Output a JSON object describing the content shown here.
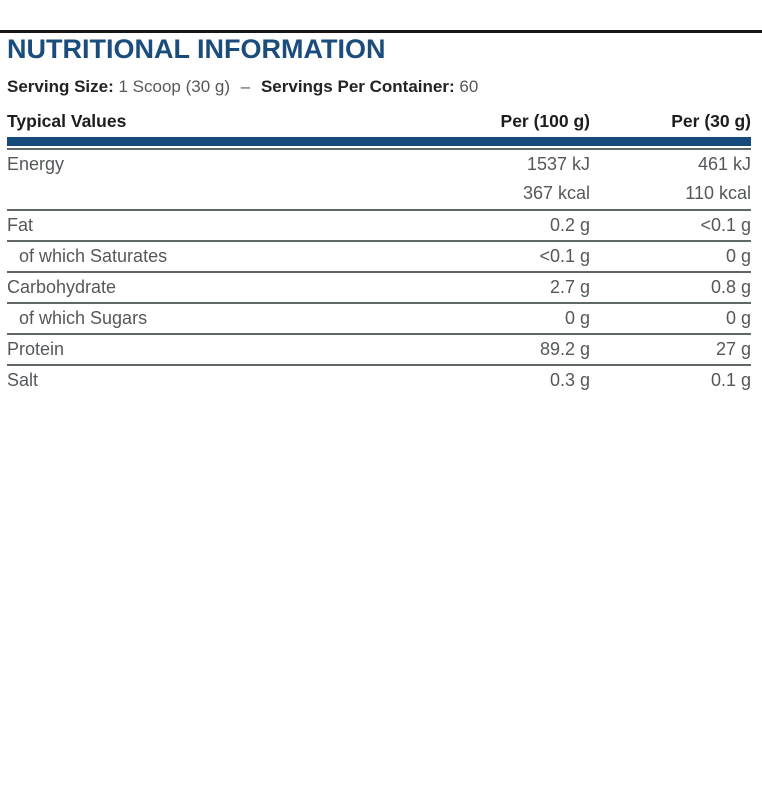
{
  "title": "NUTRITIONAL INFORMATION",
  "serving": {
    "size_label": "Serving Size:",
    "size_value": "1 Scoop (30 g)",
    "separator": "–",
    "container_label": "Servings Per Container:",
    "container_value": "60"
  },
  "table": {
    "header": {
      "col1": "Typical Values",
      "col2": "Per (100 g)",
      "col3": "Per (30 g)"
    },
    "rows": [
      {
        "label": "Energy",
        "per100": "1537 kJ",
        "per30": "461 kJ"
      },
      {
        "label": "",
        "per100": "367 kcal",
        "per30": "110 kcal"
      },
      {
        "label": "Fat",
        "per100": "0.2 g",
        "per30": "<0.1 g"
      },
      {
        "label": "of which Saturates",
        "per100": "<0.1 g",
        "per30": "0 g"
      },
      {
        "label": "Carbohydrate",
        "per100": "2.7 g",
        "per30": "0.8 g"
      },
      {
        "label": "of which Sugars",
        "per100": "0 g",
        "per30": "0 g"
      },
      {
        "label": "Protein",
        "per100": "89.2 g",
        "per30": "27 g"
      },
      {
        "label": "Salt",
        "per100": "0.3 g",
        "per30": "0.1 g"
      }
    ]
  },
  "colors": {
    "accent_blue": "#1a4d7c",
    "bar_blue": "#164a7b",
    "top_rule_black": "#161616",
    "bold_text": "#212325",
    "body_text_gray": "#55585b",
    "row_line_gray": "#5f6769"
  }
}
